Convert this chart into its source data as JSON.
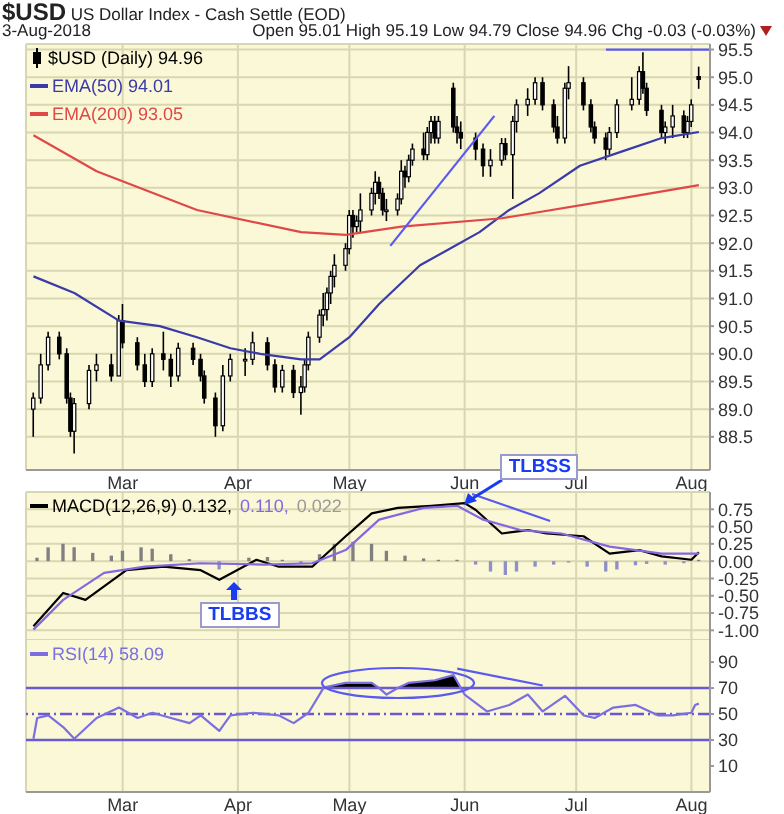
{
  "chart_data": [
    {
      "type": "candlestick",
      "title": "$USD US Dollar Index - Cash Settle (EOD)",
      "subtitle": "3-Aug-2018",
      "annotations": [
        "Open 95.01 High 95.19 Low 94.79 Close 94.96 Chg -0.03 (-0.03%)"
      ],
      "legend": "top left",
      "grid": true,
      "xlim": [
        "2018-02-03",
        "2018-08-06"
      ],
      "xticks": [
        {
          "value": "2018-03-01",
          "label": "Mar"
        },
        {
          "value": "2018-04-01",
          "label": "Apr"
        },
        {
          "value": "2018-05-01",
          "label": "May"
        },
        {
          "value": "2018-06-01",
          "label": "Jun"
        },
        {
          "value": "2018-07-01",
          "label": "Jul"
        },
        {
          "value": "2018-08-01",
          "label": "Aug"
        }
      ],
      "ylim": [
        87.9,
        95.6
      ],
      "yticks": [
        88.5,
        {
          "value": 89,
          "label": "89.0"
        },
        89.5,
        {
          "value": 90,
          "label": "90.0"
        },
        90.5,
        {
          "value": 91,
          "label": "91.0"
        },
        91.5,
        {
          "value": 92,
          "label": "92.0"
        },
        92.5,
        {
          "value": 93,
          "label": "93.0"
        },
        93.5,
        {
          "value": 94,
          "label": "94.0"
        },
        94.5,
        {
          "value": 95,
          "label": "95.0"
        },
        95.5
      ],
      "series": [
        {
          "name": "$USD (Daily) 94.96",
          "color": "#000000",
          "x": [
            "2018-02-05",
            "2018-02-07",
            "2018-02-09",
            "2018-02-12",
            "2018-02-14",
            "2018-02-15",
            "2018-02-16",
            "2018-02-20",
            "2018-02-22",
            "2018-02-26",
            "2018-02-28",
            "2018-03-01",
            "2018-03-05",
            "2018-03-07",
            "2018-03-09",
            "2018-03-12",
            "2018-03-14",
            "2018-03-16",
            "2018-03-20",
            "2018-03-22",
            "2018-03-23",
            "2018-03-26",
            "2018-03-28",
            "2018-03-30",
            "2018-04-03",
            "2018-04-05",
            "2018-04-09",
            "2018-04-11",
            "2018-04-13",
            "2018-04-16",
            "2018-04-18",
            "2018-04-19",
            "2018-04-20",
            "2018-04-23",
            "2018-04-24",
            "2018-04-25",
            "2018-04-26",
            "2018-04-27",
            "2018-04-30",
            "2018-05-01",
            "2018-05-02",
            "2018-05-03",
            "2018-05-04",
            "2018-05-07",
            "2018-05-08",
            "2018-05-09",
            "2018-05-10",
            "2018-05-11",
            "2018-05-14",
            "2018-05-15",
            "2018-05-16",
            "2018-05-17",
            "2018-05-18",
            "2018-05-21",
            "2018-05-22",
            "2018-05-23",
            "2018-05-24",
            "2018-05-25",
            "2018-05-29",
            "2018-05-30",
            "2018-05-31",
            "2018-06-04",
            "2018-06-06",
            "2018-06-08",
            "2018-06-11",
            "2018-06-12",
            "2018-06-14",
            "2018-06-15",
            "2018-06-18",
            "2018-06-20",
            "2018-06-22",
            "2018-06-25",
            "2018-06-26",
            "2018-06-28",
            "2018-06-29",
            "2018-07-03",
            "2018-07-05",
            "2018-07-06",
            "2018-07-09",
            "2018-07-10",
            "2018-07-12",
            "2018-07-16",
            "2018-07-18",
            "2018-07-19",
            "2018-07-20",
            "2018-07-24",
            "2018-07-25",
            "2018-07-27",
            "2018-07-30",
            "2018-07-31",
            "2018-08-01",
            "2018-08-03"
          ],
          "ohlc": [
            [
              89.0,
              89.3,
              88.5,
              89.2
            ],
            [
              89.2,
              90.0,
              89.1,
              89.8
            ],
            [
              89.8,
              90.4,
              89.7,
              90.3
            ],
            [
              90.3,
              90.4,
              89.9,
              90.0
            ],
            [
              90.0,
              90.1,
              89.1,
              89.2
            ],
            [
              89.2,
              89.3,
              88.5,
              88.6
            ],
            [
              88.6,
              89.2,
              88.2,
              89.1
            ],
            [
              89.1,
              89.8,
              89.0,
              89.7
            ],
            [
              89.7,
              90.0,
              89.5,
              89.8
            ],
            [
              89.8,
              90.0,
              89.5,
              89.6
            ],
            [
              89.6,
              90.7,
              89.6,
              90.6
            ],
            [
              90.6,
              90.9,
              90.1,
              90.2
            ],
            [
              90.2,
              90.3,
              89.7,
              89.8
            ],
            [
              89.8,
              90.0,
              89.4,
              89.5
            ],
            [
              89.5,
              90.1,
              89.4,
              90.0
            ],
            [
              90.0,
              90.4,
              89.7,
              89.9
            ],
            [
              89.9,
              90.0,
              89.4,
              89.6
            ],
            [
              89.6,
              90.2,
              89.5,
              90.1
            ],
            [
              90.1,
              90.2,
              89.8,
              89.9
            ],
            [
              89.9,
              90.0,
              89.5,
              89.6
            ],
            [
              89.6,
              89.7,
              89.1,
              89.2
            ],
            [
              89.2,
              89.3,
              88.5,
              88.7
            ],
            [
              88.7,
              89.8,
              88.6,
              89.6
            ],
            [
              89.6,
              90.0,
              89.5,
              89.9
            ],
            [
              89.9,
              90.1,
              89.6,
              89.9
            ],
            [
              89.9,
              90.4,
              89.8,
              90.2
            ],
            [
              90.2,
              90.3,
              89.7,
              89.8
            ],
            [
              89.8,
              89.9,
              89.3,
              89.4
            ],
            [
              89.4,
              89.8,
              89.3,
              89.7
            ],
            [
              89.7,
              89.8,
              89.2,
              89.3
            ],
            [
              89.3,
              89.6,
              88.9,
              89.4
            ],
            [
              89.4,
              89.9,
              89.3,
              89.8
            ],
            [
              89.8,
              90.4,
              89.7,
              90.3
            ],
            [
              90.3,
              90.8,
              90.2,
              90.7
            ],
            [
              90.7,
              91.1,
              90.5,
              90.8
            ],
            [
              90.8,
              91.2,
              90.6,
              91.1
            ],
            [
              91.1,
              91.5,
              90.9,
              91.4
            ],
            [
              91.4,
              91.8,
              91.2,
              91.6
            ],
            [
              91.6,
              92.0,
              91.5,
              91.9
            ],
            [
              91.9,
              92.6,
              91.8,
              92.5
            ],
            [
              92.5,
              92.6,
              92.1,
              92.3
            ],
            [
              92.3,
              92.5,
              92.2,
              92.4
            ],
            [
              92.4,
              92.9,
              92.2,
              92.6
            ],
            [
              92.6,
              93.0,
              92.5,
              92.9
            ],
            [
              92.9,
              93.3,
              92.7,
              93.1
            ],
            [
              93.1,
              93.2,
              92.8,
              92.9
            ],
            [
              92.9,
              93.0,
              92.5,
              92.6
            ],
            [
              92.6,
              92.8,
              92.4,
              92.6
            ],
            [
              92.6,
              92.9,
              92.5,
              92.8
            ],
            [
              92.8,
              93.5,
              92.7,
              93.3
            ],
            [
              93.3,
              93.4,
              93.0,
              93.2
            ],
            [
              93.2,
              93.6,
              93.1,
              93.5
            ],
            [
              93.5,
              93.8,
              93.4,
              93.7
            ],
            [
              93.7,
              94.0,
              93.5,
              93.6
            ],
            [
              93.6,
              94.1,
              93.5,
              94.0
            ],
            [
              94.0,
              94.3,
              93.8,
              94.2
            ],
            [
              94.2,
              94.3,
              93.8,
              93.9
            ],
            [
              93.9,
              94.3,
              93.8,
              94.2
            ],
            [
              94.8,
              94.9,
              94.0,
              94.1
            ],
            [
              94.1,
              94.3,
              93.8,
              94.0
            ],
            [
              94.0,
              94.2,
              93.7,
              93.9
            ],
            [
              93.9,
              94.0,
              93.5,
              93.7
            ],
            [
              93.7,
              93.8,
              93.2,
              93.4
            ],
            [
              93.4,
              93.7,
              93.2,
              93.5
            ],
            [
              93.5,
              93.9,
              93.4,
              93.8
            ],
            [
              93.8,
              93.9,
              93.5,
              93.6
            ],
            [
              93.6,
              94.3,
              92.8,
              94.2
            ],
            [
              94.2,
              94.6,
              94.0,
              94.5
            ],
            [
              94.5,
              94.8,
              94.3,
              94.6
            ],
            [
              94.6,
              95.0,
              94.5,
              94.9
            ],
            [
              94.9,
              95.0,
              94.4,
              94.5
            ],
            [
              94.5,
              94.6,
              94.0,
              94.1
            ],
            [
              94.1,
              94.3,
              93.8,
              93.9
            ],
            [
              93.9,
              94.9,
              93.8,
              94.8
            ],
            [
              94.8,
              95.2,
              94.6,
              94.9
            ],
            [
              94.9,
              95.0,
              94.4,
              94.5
            ],
            [
              94.5,
              94.6,
              94.0,
              94.1
            ],
            [
              94.1,
              94.2,
              93.8,
              93.9
            ],
            [
              93.9,
              94.0,
              93.5,
              93.7
            ],
            [
              93.7,
              94.1,
              93.6,
              94.0
            ],
            [
              94.0,
              94.6,
              93.9,
              94.5
            ],
            [
              94.5,
              95.0,
              94.4,
              94.6
            ],
            [
              94.6,
              95.2,
              94.5,
              95.1
            ],
            [
              95.1,
              95.45,
              94.7,
              94.8
            ],
            [
              94.8,
              94.9,
              94.3,
              94.4
            ],
            [
              94.4,
              94.5,
              93.9,
              94.0
            ],
            [
              94.0,
              94.2,
              93.8,
              94.1
            ],
            [
              94.1,
              94.5,
              93.9,
              94.3
            ],
            [
              94.3,
              94.4,
              93.9,
              94.0
            ],
            [
              94.0,
              94.3,
              93.9,
              94.2
            ],
            [
              94.2,
              94.6,
              94.1,
              94.5
            ],
            [
              95.01,
              95.19,
              94.79,
              94.96
            ]
          ]
        },
        {
          "type": "line",
          "name": "EMA(50) 94.01",
          "color": "#3a3aa8",
          "x": [
            "2018-02-05",
            "2018-02-16",
            "2018-02-28",
            "2018-03-11",
            "2018-03-21",
            "2018-03-30",
            "2018-04-07",
            "2018-04-18",
            "2018-04-23",
            "2018-05-01",
            "2018-05-09",
            "2018-05-20",
            "2018-05-28",
            "2018-06-05",
            "2018-06-13",
            "2018-06-21",
            "2018-07-02",
            "2018-07-13",
            "2018-07-24",
            "2018-08-03"
          ],
          "values": [
            91.4,
            91.1,
            90.6,
            90.5,
            90.3,
            90.1,
            90.0,
            89.9,
            89.9,
            90.3,
            90.9,
            91.6,
            91.9,
            92.2,
            92.6,
            92.9,
            93.4,
            93.65,
            93.9,
            94.01
          ]
        },
        {
          "type": "line",
          "name": "EMA(200) 93.05",
          "color": "#e04848",
          "x": [
            "2018-02-05",
            "2018-02-22",
            "2018-03-21",
            "2018-04-18",
            "2018-04-30",
            "2018-05-15",
            "2018-06-11",
            "2018-07-08",
            "2018-08-03"
          ],
          "values": [
            93.95,
            93.3,
            92.6,
            92.2,
            92.15,
            92.3,
            92.45,
            92.75,
            93.05
          ]
        },
        {
          "type": "line",
          "color": "#5a5af0",
          "x": [
            "2018-05-12",
            "2018-06-09"
          ],
          "values": [
            91.95,
            94.3
          ]
        },
        {
          "type": "line",
          "color": "#5a5af0",
          "x": [
            "2018-07-09",
            "2018-08-06"
          ],
          "values": [
            95.5,
            95.5
          ]
        }
      ]
    },
    {
      "type": "line",
      "legend": "top left",
      "grid": true,
      "tick_labels": "y",
      "xlim": [
        "2018-02-03",
        "2018-08-06"
      ],
      "xticks": [
        {
          "value": "2018-03-01",
          "label": null
        },
        {
          "value": "2018-04-01",
          "label": null
        },
        {
          "value": "2018-05-01",
          "label": null
        },
        {
          "value": "2018-06-01",
          "label": null
        },
        {
          "value": "2018-07-01",
          "label": null
        },
        {
          "value": "2018-08-01",
          "label": null
        }
      ],
      "ylim": [
        -1.14,
        1.0
      ],
      "yticks": [
        0.75,
        {
          "value": 0.5,
          "label": "0.50"
        },
        0.25,
        {
          "value": 0,
          "label": "0.00"
        },
        -0.25,
        {
          "value": -0.5,
          "label": "-0.50"
        },
        -0.75,
        {
          "value": -1,
          "label": "-1.00"
        }
      ],
      "annotations": [
        {
          "text": "TLBSS",
          "x": "2018-06-01",
          "y": 0.84
        },
        {
          "text": "TLBBS",
          "x": "2018-03-31",
          "y": -0.29
        }
      ],
      "series": [
        {
          "name": "MACD(12,26,9) 0.132,",
          "color": "#000000",
          "x": [
            "2018-02-05",
            "2018-02-13",
            "2018-02-19",
            "2018-03-02",
            "2018-03-12",
            "2018-03-22",
            "2018-03-27",
            "2018-04-06",
            "2018-04-12",
            "2018-04-21",
            "2018-04-30",
            "2018-05-07",
            "2018-05-14",
            "2018-05-23",
            "2018-05-28",
            "2018-06-01",
            "2018-06-04",
            "2018-06-11",
            "2018-06-18",
            "2018-06-23",
            "2018-07-03",
            "2018-07-10",
            "2018-07-18",
            "2018-07-24",
            "2018-08-01",
            "2018-08-03"
          ],
          "values": [
            -0.94,
            -0.46,
            -0.56,
            -0.13,
            -0.08,
            -0.13,
            -0.27,
            0.02,
            -0.08,
            -0.08,
            0.36,
            0.69,
            0.77,
            0.8,
            0.82,
            0.84,
            0.74,
            0.4,
            0.45,
            0.4,
            0.36,
            0.11,
            0.16,
            0.07,
            0.02,
            0.13
          ]
        },
        {
          "name": "0.110,",
          "color": "#8866e0",
          "x": [
            "2018-02-05",
            "2018-02-13",
            "2018-02-24",
            "2018-03-07",
            "2018-03-22",
            "2018-04-08",
            "2018-04-21",
            "2018-04-30",
            "2018-05-09",
            "2018-05-21",
            "2018-05-30",
            "2018-06-06",
            "2018-06-16",
            "2018-06-27",
            "2018-07-10",
            "2018-07-24",
            "2018-08-03"
          ],
          "values": [
            -0.99,
            -0.56,
            -0.17,
            -0.08,
            -0.03,
            -0.05,
            -0.03,
            0.16,
            0.6,
            0.77,
            0.8,
            0.6,
            0.45,
            0.4,
            0.21,
            0.11,
            0.11
          ]
        },
        {
          "type": "bar",
          "name": "0.022",
          "color": "#9a9a9a",
          "x": [
            "2018-02-06",
            "2018-02-09",
            "2018-02-13",
            "2018-02-16",
            "2018-02-21",
            "2018-02-26",
            "2018-03-01",
            "2018-03-06",
            "2018-03-09",
            "2018-03-14",
            "2018-03-19",
            "2018-03-22",
            "2018-03-27",
            "2018-03-30",
            "2018-04-04",
            "2018-04-09",
            "2018-04-13",
            "2018-04-18",
            "2018-04-23",
            "2018-04-27",
            "2018-05-02",
            "2018-05-07",
            "2018-05-11",
            "2018-05-16",
            "2018-05-21",
            "2018-05-25",
            "2018-05-30",
            "2018-06-04",
            "2018-06-08",
            "2018-06-12",
            "2018-06-15",
            "2018-06-20",
            "2018-06-25",
            "2018-06-29",
            "2018-07-04",
            "2018-07-09",
            "2018-07-12",
            "2018-07-17",
            "2018-07-20",
            "2018-07-25",
            "2018-07-30",
            "2018-08-03"
          ],
          "values": [
            0.05,
            0.2,
            0.25,
            0.2,
            0.12,
            0.08,
            0.15,
            0.2,
            0.18,
            0.1,
            0.03,
            null,
            -0.12,
            null,
            0.05,
            0.06,
            0.02,
            -0.03,
            0.1,
            0.25,
            0.28,
            0.25,
            0.15,
            0.08,
            0.04,
            0.02,
            0.02,
            -0.05,
            -0.15,
            -0.2,
            -0.15,
            -0.08,
            -0.05,
            -0.02,
            -0.08,
            -0.15,
            -0.12,
            -0.06,
            -0.04,
            -0.05,
            -0.03,
            0.02
          ],
          "colors": [
            "#808080",
            "#808080",
            "#808080",
            "#808080",
            "#808080",
            "#808080",
            "#808080",
            "#808080",
            "#808080",
            "#808080",
            "#808080",
            "#9090c8",
            "#9090c8",
            "#9090c8",
            "#808080",
            "#808080",
            "#808080",
            "#9090c8",
            "#808080",
            "#808080",
            "#808080",
            "#808080",
            "#808080",
            "#808080",
            "#808080",
            "#808080",
            "#808080",
            "#9090c8",
            "#9090c8",
            "#9090c8",
            "#9090c8",
            "#9090c8",
            "#9090c8",
            "#9090c8",
            "#9090c8",
            "#9090c8",
            "#9090c8",
            "#9090c8",
            "#9090c8",
            "#9090c8",
            "#9090c8",
            "#808080"
          ]
        },
        {
          "color": "#5a5af0",
          "x": [
            "2018-06-03",
            "2018-06-24"
          ],
          "values": [
            0.97,
            0.58
          ]
        }
      ]
    },
    {
      "type": "line",
      "legend": "top left",
      "grid": "x",
      "xlim": [
        "2018-02-03",
        "2018-08-06"
      ],
      "xticks": [
        {
          "value": "2018-03-01",
          "label": "Mar"
        },
        {
          "value": "2018-04-01",
          "label": "Apr"
        },
        {
          "value": "2018-05-01",
          "label": "May"
        },
        {
          "value": "2018-06-01",
          "label": "Jun"
        },
        {
          "value": "2018-07-01",
          "label": "Jul"
        },
        {
          "value": "2018-08-01",
          "label": "Aug"
        }
      ],
      "ylim": [
        -10,
        107
      ],
      "yticks": [
        10,
        30,
        50,
        70,
        90
      ],
      "ref_lines": [
        {
          "axis": "y",
          "value": 70,
          "color": "#6a5acd"
        },
        {
          "axis": "y",
          "value": 50,
          "color": "#6a5acd",
          "line_style": "dashed"
        },
        {
          "axis": "y",
          "value": 30,
          "color": "#6a5acd"
        }
      ],
      "series": [
        {
          "name": "RSI(14) 58.09",
          "color": "#7b6ee0",
          "x": [
            "2018-02-05",
            "2018-02-06",
            "2018-02-09",
            "2018-02-13",
            "2018-02-16",
            "2018-02-22",
            "2018-02-28",
            "2018-03-05",
            "2018-03-09",
            "2018-03-14",
            "2018-03-19",
            "2018-03-22",
            "2018-03-27",
            "2018-03-30",
            "2018-04-05",
            "2018-04-12",
            "2018-04-16",
            "2018-04-20",
            "2018-04-24",
            "2018-04-25",
            "2018-04-30",
            "2018-05-07",
            "2018-05-09",
            "2018-05-11",
            "2018-05-14",
            "2018-05-17",
            "2018-05-24",
            "2018-05-29",
            "2018-05-31",
            "2018-06-01",
            "2018-06-07",
            "2018-06-13",
            "2018-06-18",
            "2018-06-22",
            "2018-06-28",
            "2018-07-03",
            "2018-07-06",
            "2018-07-11",
            "2018-07-17",
            "2018-07-23",
            "2018-07-27",
            "2018-08-01",
            "2018-08-02",
            "2018-08-03"
          ],
          "values": [
            31,
            47,
            49,
            40,
            31,
            47,
            55,
            47,
            51,
            47,
            43,
            49,
            37,
            49,
            51,
            49,
            43,
            51,
            70,
            71,
            74,
            74,
            70,
            65,
            70,
            74,
            76,
            80,
            70,
            65,
            52,
            57,
            65,
            52,
            64,
            49,
            47,
            55,
            57,
            49,
            49,
            51,
            57,
            58
          ],
          "lower": [
            null,
            null,
            null,
            null,
            null,
            null,
            null,
            null,
            null,
            null,
            null,
            null,
            null,
            null,
            null,
            null,
            null,
            null,
            70,
            70,
            70,
            70,
            70,
            null,
            70,
            70,
            70,
            70,
            70,
            null,
            null,
            null,
            null,
            null,
            null,
            null,
            null,
            null,
            null,
            null,
            null,
            null,
            null,
            null
          ],
          "upper": [
            null,
            null,
            null,
            null,
            null,
            null,
            null,
            null,
            null,
            null,
            null,
            null,
            null,
            null,
            null,
            null,
            null,
            null,
            70,
            71,
            74,
            74,
            70,
            null,
            70,
            74,
            76,
            80,
            70,
            null,
            null,
            null,
            null,
            null,
            null,
            null,
            null,
            null,
            null,
            null,
            null,
            null,
            null,
            null
          ]
        },
        {
          "color": "#5a5af0",
          "x": [
            "2018-05-30",
            "2018-06-22"
          ],
          "values": [
            85,
            72
          ]
        }
      ]
    }
  ]
}
